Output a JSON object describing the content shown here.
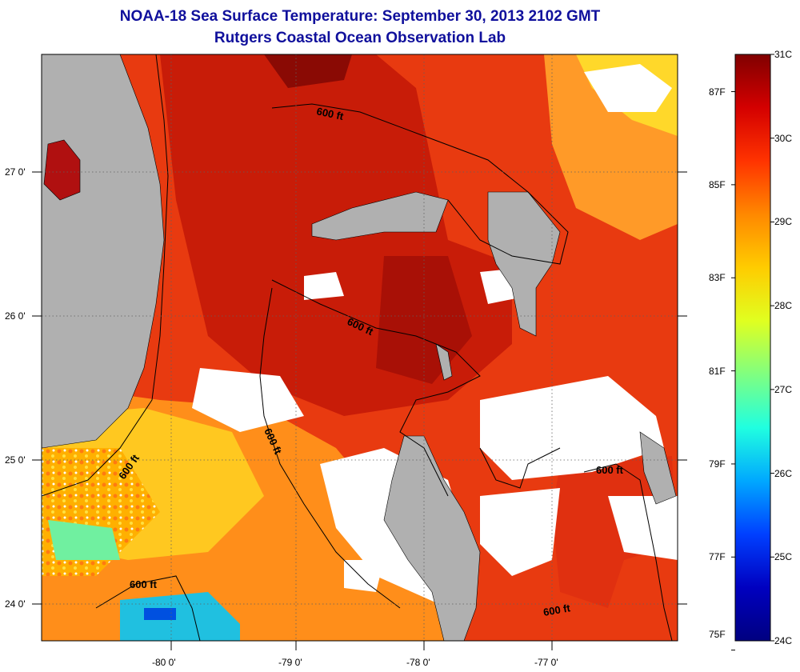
{
  "title": "NOAA-18 Sea Surface Temperature:  September 30, 2013 2102 GMT",
  "subtitle": "Rutgers Coastal Ocean Observation Lab",
  "axes": {
    "lat_ticks": [
      "27 0'",
      "26 0'",
      "25 0'",
      "24 0'"
    ],
    "lon_ticks": [
      "-80 0'",
      "-79 0'",
      "-78 0'",
      "-77 0'"
    ]
  },
  "contours": {
    "label": "600 ft"
  },
  "colorbar": {
    "celsius_labels": [
      "31C",
      "30C",
      "29C",
      "28C",
      "27C",
      "26C",
      "25C",
      "24C"
    ],
    "fahrenheit_labels": [
      "87F",
      "85F",
      "83F",
      "81F",
      "79F",
      "77F",
      "75F"
    ],
    "colors": [
      "#800000",
      "#d40000",
      "#ff3300",
      "#ff8800",
      "#ffcc00",
      "#e0ff20",
      "#80ff80",
      "#20ffe0",
      "#00a8ff",
      "#0040ff",
      "#0000c0",
      "#000080"
    ]
  },
  "colors": {
    "land": "#b0b0b0",
    "cloud": "#ffffff",
    "sst_warm": "#e83a10",
    "sst_hot": "#c01808",
    "sst_mid": "#ff8a18",
    "sst_cool": "#ffd020"
  }
}
